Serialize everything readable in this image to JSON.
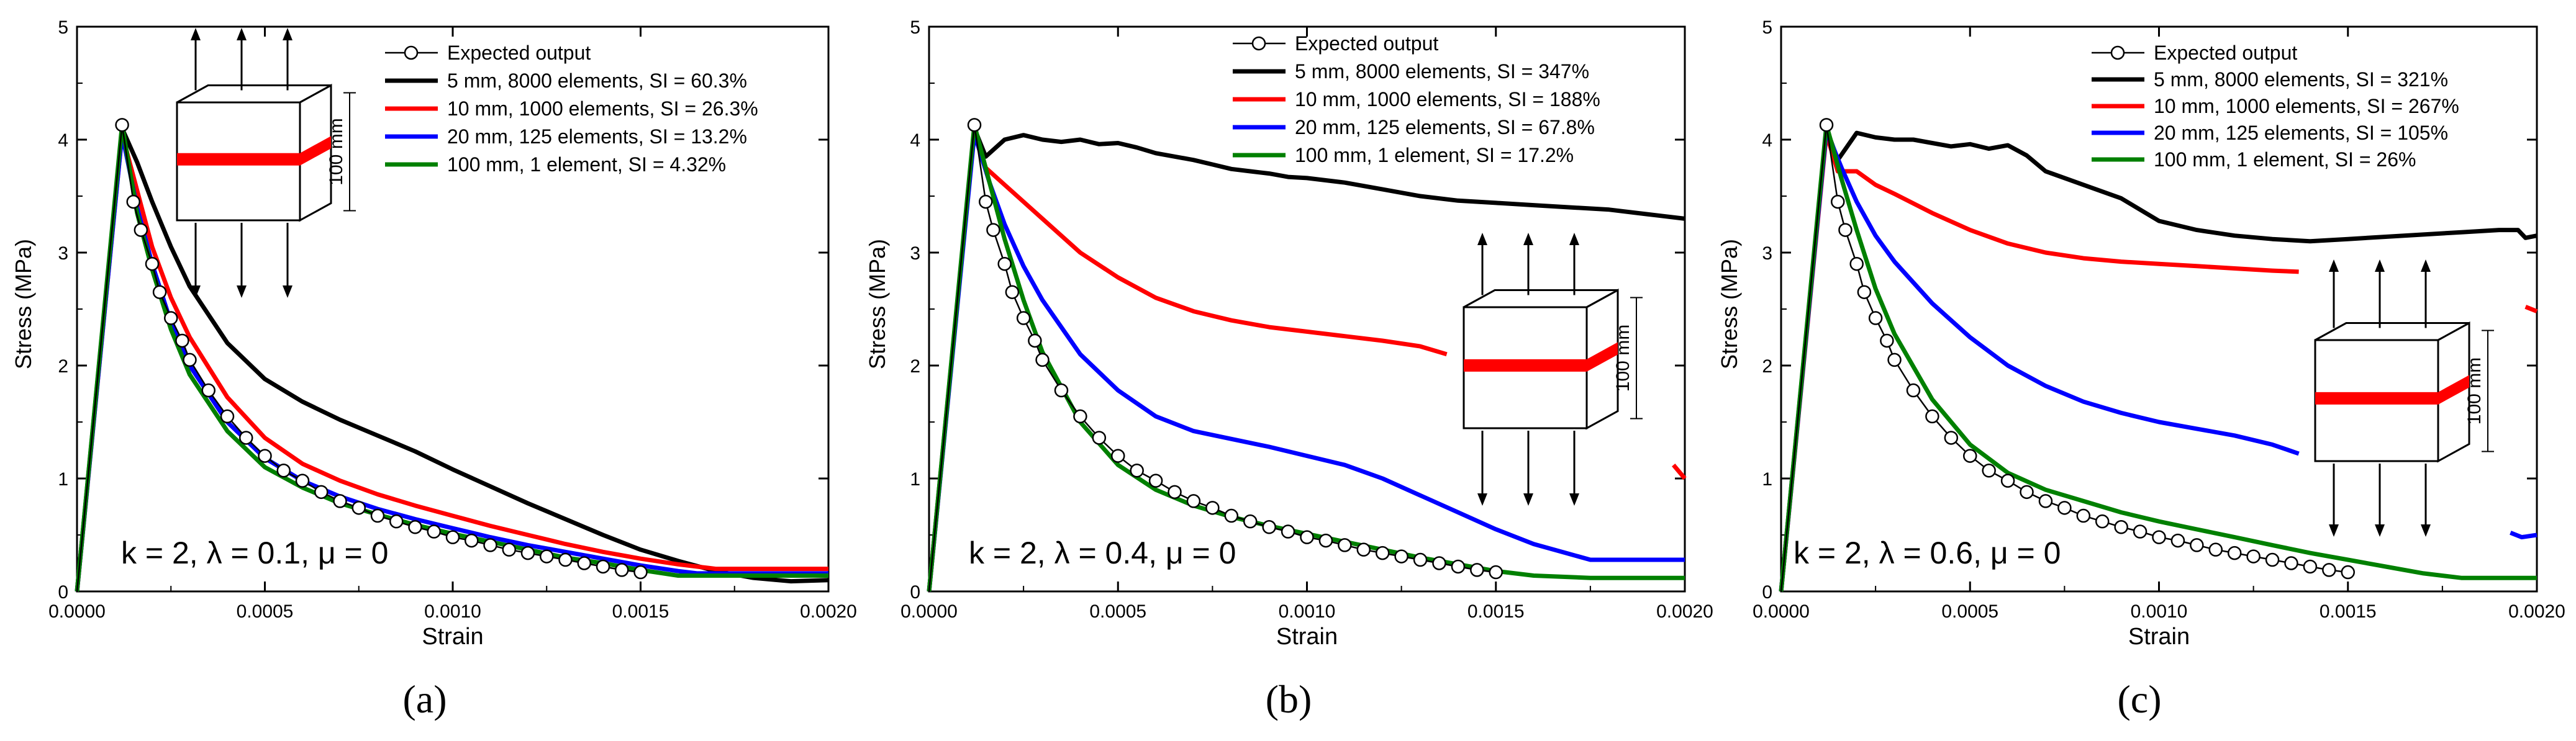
{
  "chart_data": [
    {
      "type": "line",
      "panel_label": "(a)",
      "xlabel": "Strain",
      "ylabel": "Stress (MPa)",
      "xlim": [
        0,
        0.002
      ],
      "ylim": [
        0,
        5
      ],
      "xticks": [
        "0.0000",
        "0.0005",
        "0.0010",
        "0.0015",
        "0.0020"
      ],
      "yticks": [
        "0",
        "1",
        "2",
        "3",
        "4",
        "5"
      ],
      "annotation": "k = 2, λ = 0.1, μ = 0",
      "inset_label": "100 mm",
      "legend_position": "top-right",
      "series": [
        {
          "name": "Expected output",
          "color": "#000000",
          "marker": "circle",
          "x": [
            0,
            0.00012,
            0.00015,
            0.00017,
            0.0002,
            0.00022,
            0.00025,
            0.00028,
            0.0003,
            0.00035,
            0.0004,
            0.00045,
            0.0005,
            0.00055,
            0.0006,
            0.00065,
            0.0007,
            0.00075,
            0.0008,
            0.00085,
            0.0009,
            0.00095,
            0.001,
            0.00105,
            0.0011,
            0.00115,
            0.0012,
            0.00125,
            0.0013,
            0.00135,
            0.0014,
            0.00145,
            0.0015
          ],
          "y": [
            0,
            4.13,
            3.45,
            3.2,
            2.9,
            2.65,
            2.42,
            2.22,
            2.05,
            1.78,
            1.55,
            1.36,
            1.2,
            1.07,
            0.98,
            0.88,
            0.8,
            0.74,
            0.67,
            0.62,
            0.57,
            0.53,
            0.48,
            0.45,
            0.41,
            0.37,
            0.34,
            0.31,
            0.28,
            0.25,
            0.22,
            0.19,
            0.17
          ]
        },
        {
          "name": "5 mm, 8000 elements, SI = 60.3%",
          "color": "#000000",
          "x": [
            0,
            0.00012,
            0.00016,
            0.0002,
            0.00025,
            0.0003,
            0.0004,
            0.0005,
            0.0006,
            0.0007,
            0.0008,
            0.0009,
            0.001,
            0.0011,
            0.0012,
            0.0013,
            0.0014,
            0.0015,
            0.0016,
            0.0017,
            0.0018,
            0.0019,
            0.002
          ],
          "y": [
            0,
            4.1,
            3.8,
            3.45,
            3.05,
            2.7,
            2.2,
            1.88,
            1.68,
            1.52,
            1.38,
            1.24,
            1.08,
            0.93,
            0.78,
            0.64,
            0.5,
            0.37,
            0.27,
            0.18,
            0.12,
            0.09,
            0.1
          ]
        },
        {
          "name": "10 mm, 1000 elements, SI = 26.3%",
          "color": "#ff0000",
          "x": [
            0,
            0.00012,
            0.00016,
            0.0002,
            0.00025,
            0.0003,
            0.0004,
            0.0005,
            0.0006,
            0.0007,
            0.0008,
            0.0009,
            0.001,
            0.0011,
            0.0012,
            0.0013,
            0.0014,
            0.0015,
            0.0016,
            0.0017,
            0.00175,
            0.002
          ],
          "y": [
            0,
            4.05,
            3.55,
            3.05,
            2.6,
            2.25,
            1.72,
            1.36,
            1.13,
            0.98,
            0.86,
            0.76,
            0.67,
            0.58,
            0.5,
            0.42,
            0.35,
            0.29,
            0.24,
            0.2,
            0.2,
            0.2
          ]
        },
        {
          "name": "20 mm, 125 elements, SI = 13.2%",
          "color": "#0000ff",
          "x": [
            0,
            0.00012,
            0.00016,
            0.0002,
            0.00025,
            0.0003,
            0.0004,
            0.0005,
            0.0006,
            0.0007,
            0.0008,
            0.0009,
            0.001,
            0.0011,
            0.0012,
            0.0013,
            0.0014,
            0.0015,
            0.0016,
            0.00165,
            0.002
          ],
          "y": [
            0,
            4.05,
            3.4,
            2.9,
            2.38,
            2.0,
            1.5,
            1.18,
            0.98,
            0.84,
            0.73,
            0.64,
            0.56,
            0.48,
            0.41,
            0.35,
            0.29,
            0.23,
            0.18,
            0.16,
            0.16
          ]
        },
        {
          "name": "100 mm, 1 element, SI = 4.32%",
          "color": "#008000",
          "x": [
            0,
            0.00012,
            0.00016,
            0.0002,
            0.00025,
            0.0003,
            0.0004,
            0.0005,
            0.0006,
            0.0007,
            0.0008,
            0.0009,
            0.001,
            0.0011,
            0.0012,
            0.0013,
            0.0014,
            0.0015,
            0.0016,
            0.002
          ],
          "y": [
            0,
            4.13,
            3.35,
            2.85,
            2.32,
            1.92,
            1.42,
            1.1,
            0.92,
            0.78,
            0.68,
            0.59,
            0.51,
            0.44,
            0.37,
            0.3,
            0.25,
            0.19,
            0.14,
            0.14
          ]
        }
      ]
    },
    {
      "type": "line",
      "panel_label": "(b)",
      "xlabel": "Strain",
      "ylabel": "Stress (MPa)",
      "xlim": [
        0,
        0.002
      ],
      "ylim": [
        0,
        5
      ],
      "xticks": [
        "0.0000",
        "0.0005",
        "0.0010",
        "0.0015",
        "0.0020"
      ],
      "yticks": [
        "0",
        "1",
        "2",
        "3",
        "4",
        "5"
      ],
      "annotation": "k = 2, λ = 0.4, μ = 0",
      "inset_label": "100 mm",
      "legend_position": "top-right",
      "series": [
        {
          "name": "Expected output",
          "color": "#000000",
          "marker": "circle",
          "x": [
            0,
            0.00012,
            0.00015,
            0.00017,
            0.0002,
            0.00022,
            0.00025,
            0.00028,
            0.0003,
            0.00035,
            0.0004,
            0.00045,
            0.0005,
            0.00055,
            0.0006,
            0.00065,
            0.0007,
            0.00075,
            0.0008,
            0.00085,
            0.0009,
            0.00095,
            0.001,
            0.00105,
            0.0011,
            0.00115,
            0.0012,
            0.00125,
            0.0013,
            0.00135,
            0.0014,
            0.00145,
            0.0015
          ],
          "y": [
            0,
            4.13,
            3.45,
            3.2,
            2.9,
            2.65,
            2.42,
            2.22,
            2.05,
            1.78,
            1.55,
            1.36,
            1.2,
            1.07,
            0.98,
            0.88,
            0.8,
            0.74,
            0.67,
            0.62,
            0.57,
            0.53,
            0.48,
            0.45,
            0.41,
            0.37,
            0.34,
            0.31,
            0.28,
            0.25,
            0.22,
            0.19,
            0.17
          ]
        },
        {
          "name": "5 mm, 8000 elements, SI = 347%",
          "color": "#000000",
          "x": [
            0,
            0.00012,
            0.00015,
            0.0002,
            0.00025,
            0.0003,
            0.00035,
            0.0004,
            0.00045,
            0.0005,
            0.00055,
            0.0006,
            0.00065,
            0.0007,
            0.00075,
            0.0008,
            0.00085,
            0.0009,
            0.00095,
            0.001,
            0.0011,
            0.0012,
            0.0013,
            0.0014,
            0.0015,
            0.0016,
            0.0017,
            0.0018,
            0.0019,
            0.002
          ],
          "y": [
            0,
            4.1,
            3.85,
            4.0,
            4.04,
            4.0,
            3.98,
            4.0,
            3.96,
            3.97,
            3.93,
            3.88,
            3.85,
            3.82,
            3.78,
            3.74,
            3.72,
            3.7,
            3.67,
            3.66,
            3.62,
            3.56,
            3.5,
            3.46,
            3.44,
            3.42,
            3.4,
            3.38,
            3.34,
            3.3
          ]
        },
        {
          "name": "10 mm, 1000 elements, SI = 188%",
          "color": "#ff0000",
          "x": [
            0,
            0.00012,
            0.00015,
            0.0002,
            0.0003,
            0.0004,
            0.0005,
            0.0006,
            0.0007,
            0.0008,
            0.0009,
            0.001,
            0.0011,
            0.0012,
            0.0013,
            0.00137
          ],
          "y": [
            0,
            4.08,
            3.75,
            3.6,
            3.3,
            3.0,
            2.78,
            2.6,
            2.48,
            2.4,
            2.34,
            2.3,
            2.26,
            2.22,
            2.17,
            2.1
          ]
        },
        {
          "name": "",
          "color": "#ff0000",
          "x": [
            0.00197,
            0.002
          ],
          "y": [
            1.12,
            1.0
          ]
        },
        {
          "name": "20 mm, 125 elements, SI = 67.8%",
          "color": "#0000ff",
          "x": [
            0,
            0.00012,
            0.00016,
            0.0002,
            0.00025,
            0.0003,
            0.0004,
            0.0005,
            0.0006,
            0.0007,
            0.0008,
            0.0009,
            0.001,
            0.0011,
            0.0012,
            0.0013,
            0.0014,
            0.0015,
            0.0016,
            0.00175,
            0.002
          ],
          "y": [
            0,
            4.05,
            3.62,
            3.25,
            2.88,
            2.58,
            2.1,
            1.78,
            1.55,
            1.42,
            1.35,
            1.28,
            1.2,
            1.12,
            1.0,
            0.85,
            0.7,
            0.55,
            0.42,
            0.28,
            0.28
          ]
        },
        {
          "name": "100 mm, 1 element, SI = 17.2%",
          "color": "#008000",
          "x": [
            0,
            0.00012,
            0.00016,
            0.0002,
            0.00025,
            0.0003,
            0.0004,
            0.0005,
            0.0006,
            0.0007,
            0.0008,
            0.0009,
            0.001,
            0.0011,
            0.0012,
            0.0013,
            0.0014,
            0.0015,
            0.0016,
            0.00175,
            0.002
          ],
          "y": [
            0,
            4.13,
            3.62,
            3.12,
            2.58,
            2.12,
            1.5,
            1.12,
            0.9,
            0.76,
            0.66,
            0.58,
            0.51,
            0.44,
            0.37,
            0.3,
            0.24,
            0.18,
            0.14,
            0.12,
            0.12
          ]
        }
      ]
    },
    {
      "type": "line",
      "panel_label": "(c)",
      "xlabel": "Strain",
      "ylabel": "Stress (MPa)",
      "xlim": [
        0,
        0.002
      ],
      "ylim": [
        0,
        5
      ],
      "xticks": [
        "0.0000",
        "0.0005",
        "0.0010",
        "0.0015",
        "0.0020"
      ],
      "yticks": [
        "0",
        "1",
        "2",
        "3",
        "4",
        "5"
      ],
      "annotation": "k = 2, λ = 0.6, μ = 0",
      "inset_label": "100 mm",
      "legend_position": "top-right",
      "series": [
        {
          "name": "Expected output",
          "color": "#000000",
          "marker": "circle",
          "x": [
            0,
            0.00012,
            0.00015,
            0.00017,
            0.0002,
            0.00022,
            0.00025,
            0.00028,
            0.0003,
            0.00035,
            0.0004,
            0.00045,
            0.0005,
            0.00055,
            0.0006,
            0.00065,
            0.0007,
            0.00075,
            0.0008,
            0.00085,
            0.0009,
            0.00095,
            0.001,
            0.00105,
            0.0011,
            0.00115,
            0.0012,
            0.00125,
            0.0013,
            0.00135,
            0.0014,
            0.00145,
            0.0015
          ],
          "y": [
            0,
            4.13,
            3.45,
            3.2,
            2.9,
            2.65,
            2.42,
            2.22,
            2.05,
            1.78,
            1.55,
            1.36,
            1.2,
            1.07,
            0.98,
            0.88,
            0.8,
            0.74,
            0.67,
            0.62,
            0.57,
            0.53,
            0.48,
            0.45,
            0.41,
            0.37,
            0.34,
            0.31,
            0.28,
            0.25,
            0.22,
            0.19,
            0.17
          ]
        },
        {
          "name": "5 mm, 8000 elements, SI = 321%",
          "color": "#000000",
          "x": [
            0,
            0.00012,
            0.00015,
            0.0002,
            0.00025,
            0.0003,
            0.00035,
            0.0004,
            0.00045,
            0.0005,
            0.00055,
            0.0006,
            0.00065,
            0.0007,
            0.0008,
            0.0009,
            0.001,
            0.0011,
            0.0012,
            0.0013,
            0.0014,
            0.0015,
            0.0016,
            0.0017,
            0.0018,
            0.0019,
            0.00195,
            0.00197,
            0.002
          ],
          "y": [
            0,
            4.1,
            3.82,
            4.06,
            4.02,
            4.0,
            4.0,
            3.97,
            3.94,
            3.96,
            3.92,
            3.95,
            3.86,
            3.72,
            3.6,
            3.48,
            3.28,
            3.2,
            3.15,
            3.12,
            3.1,
            3.12,
            3.14,
            3.16,
            3.18,
            3.2,
            3.2,
            3.13,
            3.15
          ]
        },
        {
          "name": "10 mm, 1000 elements, SI = 267%",
          "color": "#ff0000",
          "x": [
            0,
            0.00012,
            0.00015,
            0.0002,
            0.00025,
            0.0003,
            0.0004,
            0.0005,
            0.0006,
            0.0007,
            0.0008,
            0.0009,
            0.001,
            0.0011,
            0.0012,
            0.0013,
            0.00137
          ],
          "y": [
            0,
            4.05,
            3.72,
            3.72,
            3.6,
            3.52,
            3.35,
            3.2,
            3.08,
            3.0,
            2.95,
            2.92,
            2.9,
            2.88,
            2.86,
            2.84,
            2.83
          ]
        },
        {
          "name": "",
          "color": "#ff0000",
          "x": [
            0.00197,
            0.002
          ],
          "y": [
            2.52,
            2.48
          ]
        },
        {
          "name": "20 mm, 125 elements, SI = 105%",
          "color": "#0000ff",
          "x": [
            0,
            0.00012,
            0.00016,
            0.0002,
            0.00025,
            0.0003,
            0.0004,
            0.0005,
            0.0006,
            0.0007,
            0.0008,
            0.0009,
            0.001,
            0.0011,
            0.0012,
            0.0013,
            0.00137
          ],
          "y": [
            0,
            4.08,
            3.75,
            3.45,
            3.15,
            2.92,
            2.55,
            2.25,
            2.0,
            1.82,
            1.68,
            1.58,
            1.5,
            1.44,
            1.38,
            1.3,
            1.22
          ]
        },
        {
          "name": "",
          "color": "#0000ff",
          "x": [
            0.00193,
            0.00196,
            0.002
          ],
          "y": [
            0.52,
            0.48,
            0.5
          ]
        },
        {
          "name": "100 mm, 1 element, SI = 26%",
          "color": "#008000",
          "x": [
            0,
            0.00012,
            0.00016,
            0.0002,
            0.00025,
            0.0003,
            0.0004,
            0.0005,
            0.0006,
            0.0007,
            0.0008,
            0.0009,
            0.001,
            0.0011,
            0.0012,
            0.0013,
            0.0014,
            0.0015,
            0.0016,
            0.0017,
            0.0018,
            0.002
          ],
          "y": [
            0,
            4.13,
            3.65,
            3.2,
            2.68,
            2.28,
            1.7,
            1.3,
            1.05,
            0.9,
            0.8,
            0.7,
            0.62,
            0.55,
            0.48,
            0.41,
            0.34,
            0.28,
            0.22,
            0.16,
            0.12,
            0.12
          ]
        }
      ]
    }
  ]
}
